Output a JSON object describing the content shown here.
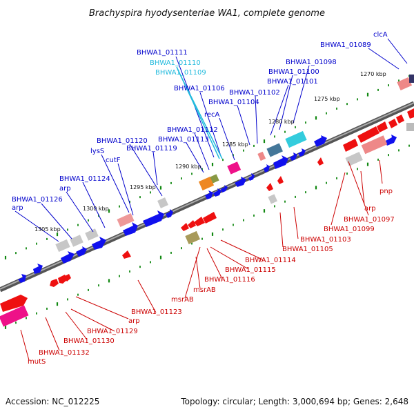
{
  "title": "Brachyspira hyodysenteriae WA1, complete genome",
  "footer": {
    "accession": "Accession: NC_012225",
    "summary": "Topology: circular; Length: 3,000,694 bp; Genes: 2,648"
  },
  "colors": {
    "forward_label": "#0000cc",
    "reverse_label": "#cc0000",
    "rna_label": "#22bbdd",
    "backbone": "#888888",
    "forward_arrow": "#0000ee",
    "reverse_arrow": "#ee0000",
    "tick": "#118811"
  },
  "ruler_labels": [
    "1270 kbp",
    "1275 kbp",
    "1280 kbp",
    "1285 kbp",
    "1290 kbp",
    "1295 kbp",
    "1300 kbp",
    "1305 kbp"
  ],
  "labels": {
    "forward": [
      "clcA",
      "BHWA1_01089",
      "BHWA1_01111",
      "BHWA1_01098",
      "BHWA1_01100",
      "BHWA1_01101",
      "BHWA1_01106",
      "BHWA1_01102",
      "BHWA1_01104",
      "recA",
      "BHWA1_01112",
      "BHWA1_01113",
      "BHWA1_01120",
      "BHWA1_01119",
      "lysS",
      "cutF",
      "BHWA1_01124",
      "arp",
      "BHWA1_01126",
      "arp"
    ],
    "rna": [
      "BHWA1_01110",
      "BHWA1_01109"
    ],
    "reverse": [
      "pnp",
      "arp",
      "BHWA1_01097",
      "BHWA1_01099",
      "BHWA1_01103",
      "BHWA1_01105",
      "BHWA1_01114",
      "BHWA1_01115",
      "BHWA1_01116",
      "msrAB",
      "msrAB",
      "BHWA1_01123",
      "arp",
      "BHWA1_01129",
      "BHWA1_01130",
      "BHWA1_01132",
      "mutS"
    ]
  }
}
